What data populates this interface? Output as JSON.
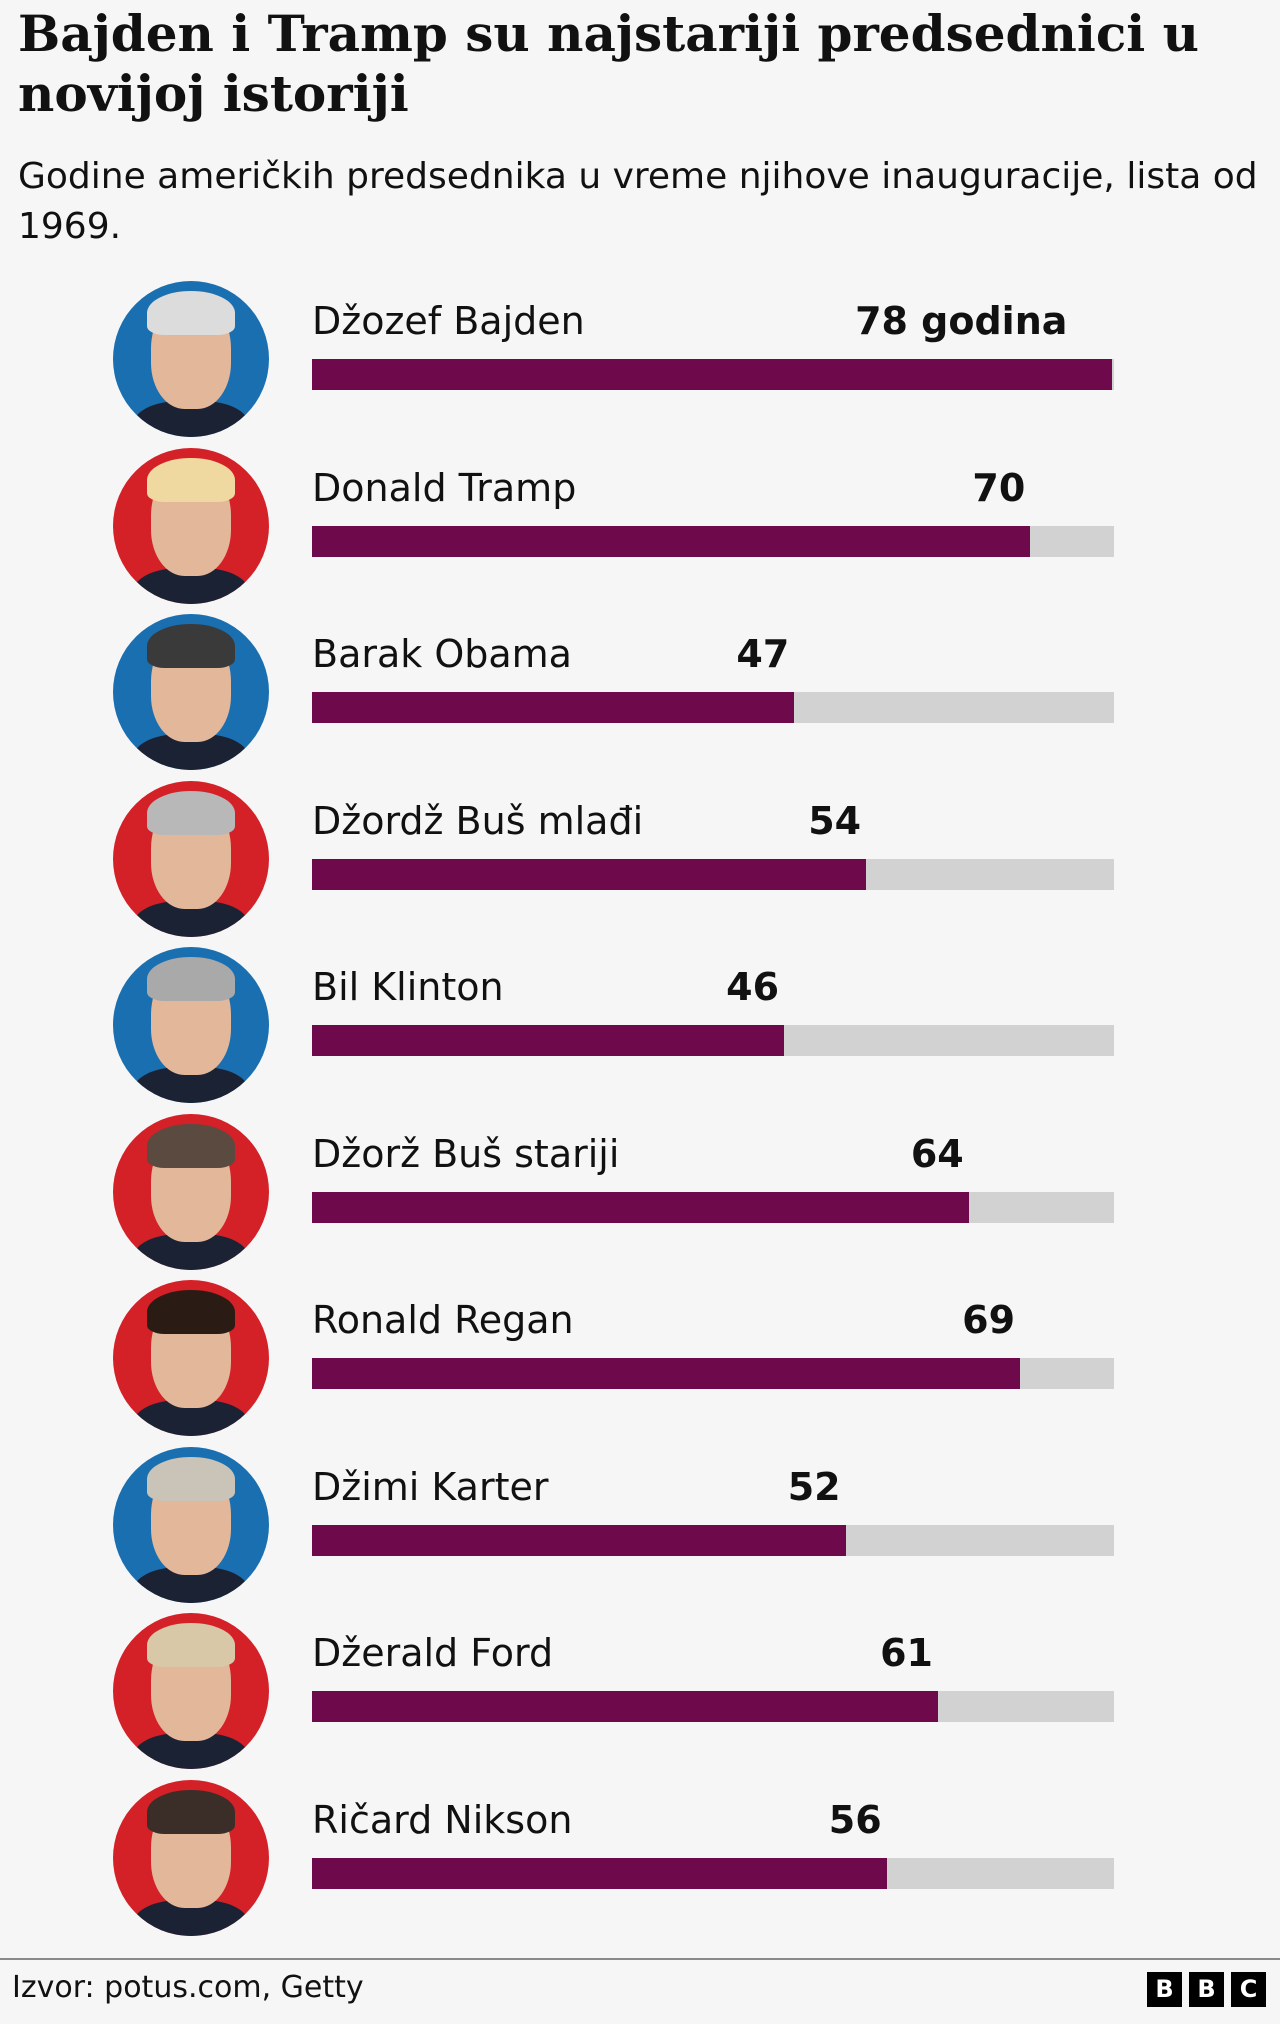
{
  "title": "Bajden i Tramp su najstariji predsednici u novijoj istoriji",
  "subtitle": "Godine američkih predsednika u vreme njihove inauguracije, lista od 1969.",
  "source": "Izvor: potus.com, Getty",
  "logo": [
    "B",
    "B",
    "C"
  ],
  "colors": {
    "bar": "#6e0a4b",
    "track": "#d2d2d2",
    "democrat": "#1a6fb0",
    "republican": "#d42027"
  },
  "chart_data": {
    "type": "bar",
    "orientation": "horizontal",
    "title": "Bajden i Tramp su najstariji predsednici u novijoj istoriji",
    "subtitle": "Godine američkih predsednika u vreme njihove inauguracije, lista od 1969.",
    "categories": [
      "Džozef Bajden",
      "Donald Tramp",
      "Barak Obama",
      "Džordž Buš mlađi",
      "Bil Klinton",
      "Džorž Buš stariji",
      "Ronald Regan",
      "Džimi Karter",
      "Džerald Ford",
      "Ričard Nikson"
    ],
    "values": [
      78,
      70,
      47,
      54,
      46,
      64,
      69,
      52,
      61,
      56
    ],
    "labels": [
      "78 godina",
      "70",
      "47",
      "54",
      "46",
      "64",
      "69",
      "52",
      "61",
      "56"
    ],
    "party": [
      "democrat",
      "republican",
      "democrat",
      "republican",
      "democrat",
      "republican",
      "republican",
      "democrat",
      "republican",
      "republican"
    ],
    "xlim": [
      0,
      78
    ],
    "grid": false
  }
}
